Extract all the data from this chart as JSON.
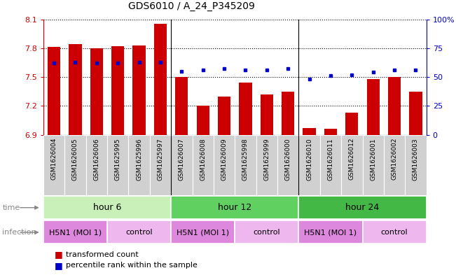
{
  "title": "GDS6010 / A_24_P345209",
  "samples": [
    "GSM1626004",
    "GSM1626005",
    "GSM1626006",
    "GSM1625995",
    "GSM1625996",
    "GSM1625997",
    "GSM1626007",
    "GSM1626008",
    "GSM1626009",
    "GSM1625998",
    "GSM1625999",
    "GSM1626000",
    "GSM1626010",
    "GSM1626011",
    "GSM1626012",
    "GSM1626001",
    "GSM1626002",
    "GSM1626003"
  ],
  "bar_values": [
    7.81,
    7.84,
    7.8,
    7.82,
    7.83,
    8.05,
    7.5,
    7.2,
    7.3,
    7.44,
    7.32,
    7.35,
    6.97,
    6.96,
    7.13,
    7.48,
    7.5,
    7.35
  ],
  "percentile_values": [
    62,
    63,
    62,
    62,
    63,
    63,
    55,
    56,
    57,
    56,
    56,
    57,
    48,
    51,
    52,
    54,
    56,
    56
  ],
  "ymin": 6.9,
  "ymax": 8.1,
  "yticks": [
    6.9,
    7.2,
    7.5,
    7.8,
    8.1
  ],
  "right_yticks": [
    0,
    25,
    50,
    75,
    100
  ],
  "bar_color": "#cc0000",
  "dot_color": "#0000cc",
  "bar_width": 0.6,
  "groups": [
    {
      "label": "hour 6",
      "start": 0,
      "end": 6,
      "color": "#c0f0b0"
    },
    {
      "label": "hour 12",
      "start": 6,
      "end": 12,
      "color": "#60d060"
    },
    {
      "label": "hour 24",
      "start": 12,
      "end": 18,
      "color": "#44c044"
    }
  ],
  "infections": [
    {
      "label": "H5N1 (MOI 1)",
      "start": 0,
      "end": 3,
      "color": "#dd88dd"
    },
    {
      "label": "control",
      "start": 3,
      "end": 6,
      "color": "#eeb8ee"
    },
    {
      "label": "H5N1 (MOI 1)",
      "start": 6,
      "end": 9,
      "color": "#dd88dd"
    },
    {
      "label": "control",
      "start": 9,
      "end": 12,
      "color": "#eeb8ee"
    },
    {
      "label": "H5N1 (MOI 1)",
      "start": 12,
      "end": 15,
      "color": "#dd88dd"
    },
    {
      "label": "control",
      "start": 15,
      "end": 18,
      "color": "#eeb8ee"
    }
  ],
  "left_axis_color": "#cc0000",
  "right_axis_color": "#0000cc",
  "bg_color": "#ffffff",
  "xlabel_bg": "#d0d0d0",
  "time_label_color": "#888888",
  "infection_label_color": "#888888"
}
